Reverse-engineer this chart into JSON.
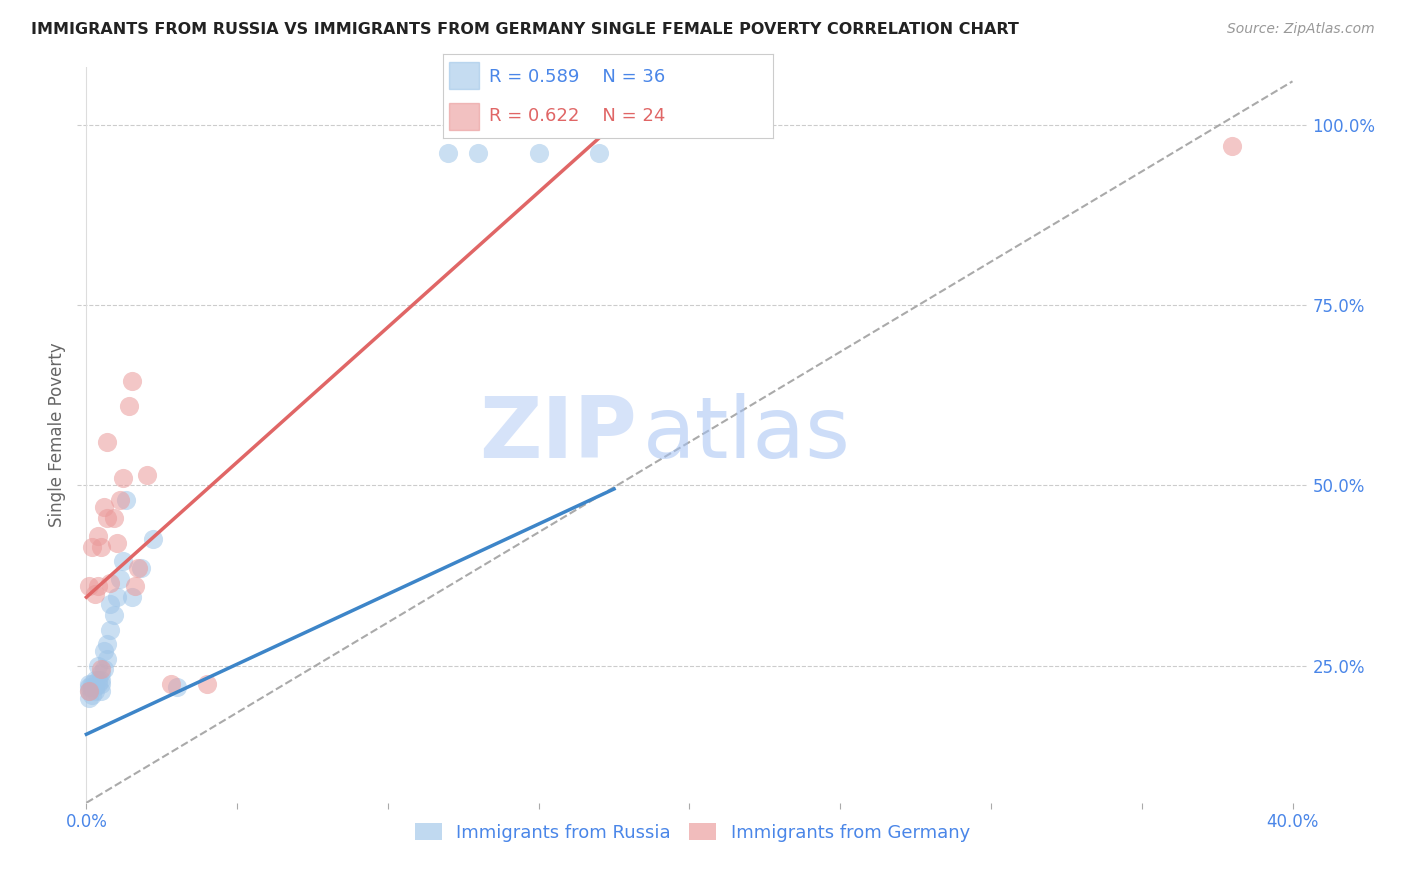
{
  "title": "IMMIGRANTS FROM RUSSIA VS IMMIGRANTS FROM GERMANY SINGLE FEMALE POVERTY CORRELATION CHART",
  "source": "Source: ZipAtlas.com",
  "ylabel": "Single Female Poverty",
  "legend_label_blue": "Immigrants from Russia",
  "legend_label_pink": "Immigrants from Germany",
  "R_blue": 0.589,
  "N_blue": 36,
  "R_pink": 0.622,
  "N_pink": 24,
  "color_blue": "#9fc5e8",
  "color_pink": "#ea9999",
  "color_blue_line": "#3d85c8",
  "color_pink_line": "#e06666",
  "color_axis_labels": "#4a86e8",
  "watermark_zip": "ZIP",
  "watermark_atlas": "atlas",
  "xlim_min": -0.003,
  "xlim_max": 0.405,
  "ylim_min": 0.06,
  "ylim_max": 1.08,
  "blue_line_x": [
    0.0,
    0.175
  ],
  "blue_line_y": [
    0.155,
    0.495
  ],
  "pink_line_x": [
    0.0,
    0.175
  ],
  "pink_line_y": [
    0.345,
    1.0
  ],
  "gray_line_x": [
    0.0,
    0.4
  ],
  "gray_line_y": [
    0.06,
    1.06
  ],
  "russia_x": [
    0.001,
    0.001,
    0.001,
    0.001,
    0.002,
    0.002,
    0.002,
    0.003,
    0.003,
    0.003,
    0.004,
    0.004,
    0.004,
    0.005,
    0.005,
    0.005,
    0.005,
    0.006,
    0.006,
    0.007,
    0.007,
    0.008,
    0.008,
    0.009,
    0.01,
    0.011,
    0.012,
    0.013,
    0.015,
    0.018,
    0.022,
    0.03,
    0.12,
    0.13,
    0.15,
    0.17
  ],
  "russia_y": [
    0.205,
    0.215,
    0.22,
    0.225,
    0.21,
    0.22,
    0.225,
    0.215,
    0.22,
    0.23,
    0.225,
    0.23,
    0.25,
    0.215,
    0.225,
    0.23,
    0.24,
    0.245,
    0.27,
    0.26,
    0.28,
    0.3,
    0.335,
    0.32,
    0.345,
    0.37,
    0.395,
    0.48,
    0.345,
    0.385,
    0.425,
    0.22,
    0.96,
    0.96,
    0.96,
    0.96
  ],
  "germany_x": [
    0.001,
    0.001,
    0.002,
    0.003,
    0.004,
    0.004,
    0.005,
    0.005,
    0.006,
    0.007,
    0.007,
    0.008,
    0.009,
    0.01,
    0.011,
    0.012,
    0.014,
    0.015,
    0.016,
    0.017,
    0.02,
    0.028,
    0.04,
    0.38
  ],
  "germany_y": [
    0.215,
    0.36,
    0.415,
    0.35,
    0.36,
    0.43,
    0.245,
    0.415,
    0.47,
    0.455,
    0.56,
    0.365,
    0.455,
    0.42,
    0.48,
    0.51,
    0.61,
    0.645,
    0.36,
    0.385,
    0.515,
    0.225,
    0.225,
    0.97
  ]
}
